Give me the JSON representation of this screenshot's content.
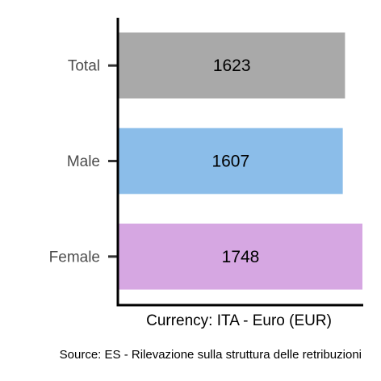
{
  "chart_data": {
    "type": "bar",
    "orientation": "horizontal",
    "categories": [
      "Total",
      "Male",
      "Female"
    ],
    "values": [
      1623,
      1607,
      1748
    ],
    "colors": [
      "#a9a9a9",
      "#8bbde9",
      "#d6a7e2"
    ],
    "data_labels": [
      "1623",
      "1607",
      "1748"
    ],
    "xlabel": "Currency: ITA - Euro (EUR)",
    "caption": "Source:  ES - Rilevazione sulla struttura delle retribuzioni",
    "xlim": [
      0,
      1748
    ],
    "grid": false,
    "legend": "none"
  }
}
